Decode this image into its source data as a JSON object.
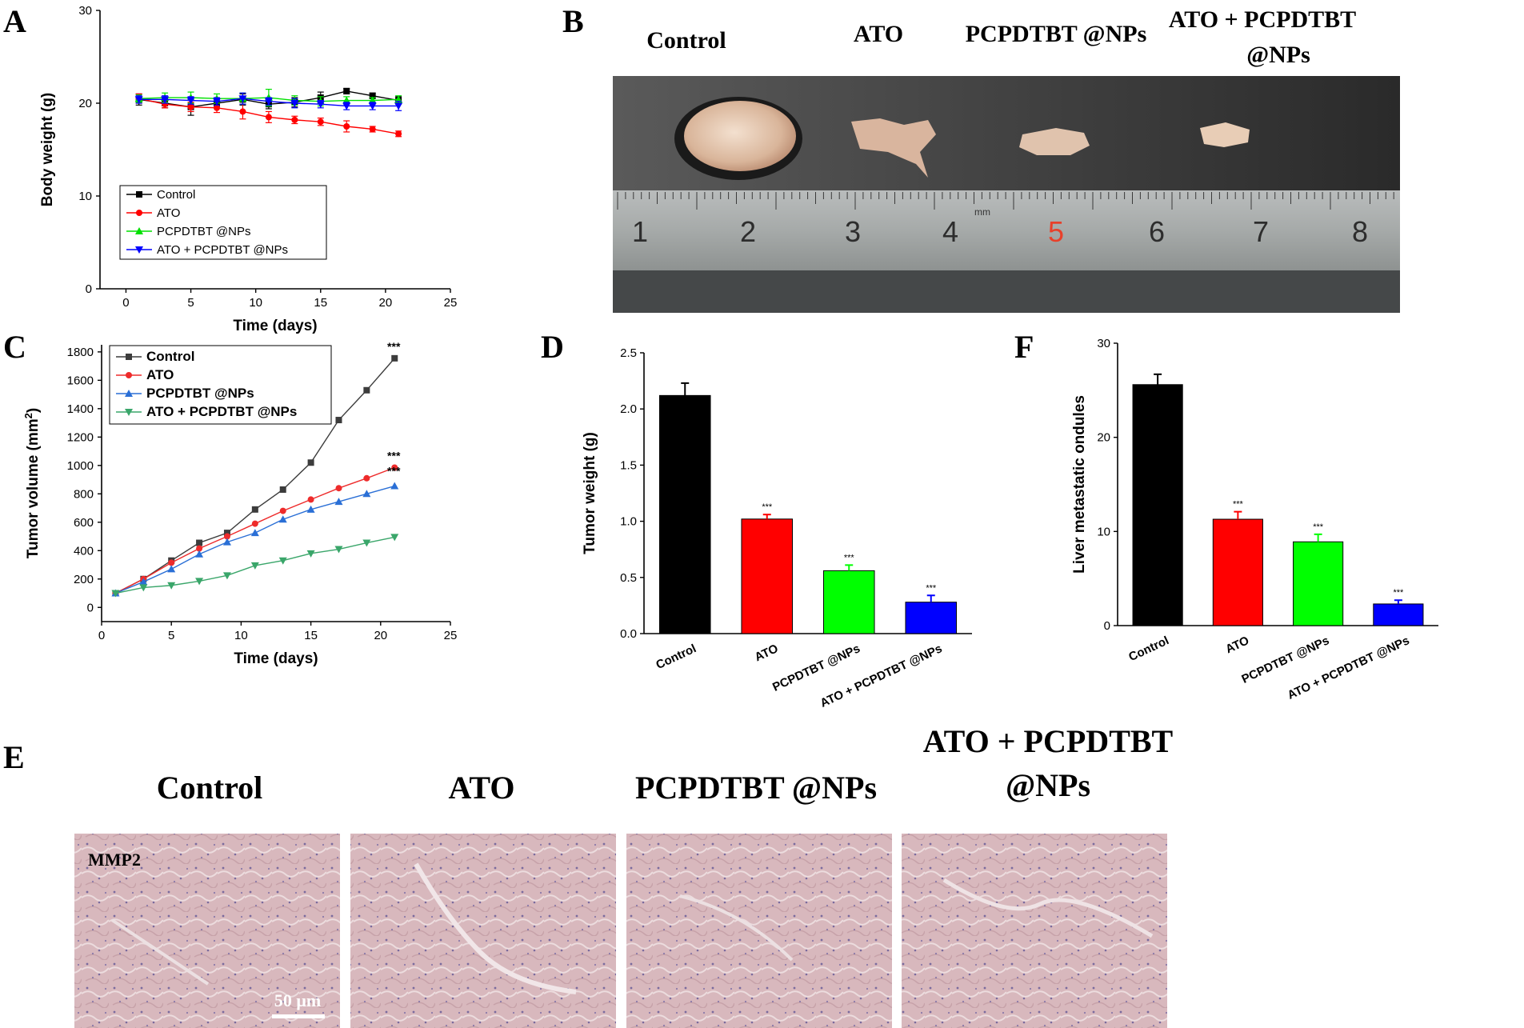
{
  "colors": {
    "black": "#000000",
    "red": "#ff0000",
    "green": "#00e000",
    "blue": "#0000ff",
    "c_control": "#3c3c3c",
    "c_ato": "#ee2b2b",
    "c_pcp": "#2a6fd6",
    "c_combo": "#3aa66a"
  },
  "panel_letters": {
    "a": "A",
    "b": "B",
    "c": "C",
    "d": "D",
    "e": "E",
    "f": "F"
  },
  "photo_b": {
    "titles": [
      "Control",
      "ATO",
      "PCPDTBT @NPs",
      "ATO + PCPDTBT",
      "@NPs"
    ],
    "ruler_numbers": [
      "1",
      "2",
      "3",
      "4",
      "5",
      "6",
      "7",
      "8"
    ],
    "ruler_unit": "mm"
  },
  "panel_e": {
    "titles": [
      "Control",
      "ATO",
      "PCPDTBT @NPs",
      "ATO + PCPDTBT",
      "@NPs"
    ],
    "stain_label": "MMP2",
    "scale_bar": "50 μm"
  },
  "chart_data": [
    {
      "id": "A",
      "type": "line",
      "xlabel": "Time (days)",
      "ylabel": "Body weight (g)",
      "xlim": [
        -2,
        25
      ],
      "ylim": [
        0,
        30
      ],
      "xticks": [
        0,
        5,
        10,
        15,
        20,
        25
      ],
      "yticks": [
        0,
        10,
        20,
        30
      ],
      "legend": "lower-left",
      "x": [
        1,
        3,
        5,
        7,
        9,
        11,
        13,
        15,
        17,
        19,
        21
      ],
      "series": [
        {
          "name": "Control",
          "color": "#000000",
          "marker": "square",
          "values": [
            20.4,
            20.0,
            19.6,
            20.0,
            20.4,
            19.9,
            20.1,
            20.6,
            21.3,
            20.8,
            20.3
          ],
          "err": [
            0.6,
            0.5,
            0.9,
            0.5,
            0.6,
            0.5,
            0.5,
            0.6,
            0.3,
            0.3,
            0.4
          ]
        },
        {
          "name": "ATO",
          "color": "#ff0000",
          "marker": "circle",
          "values": [
            20.5,
            19.9,
            19.6,
            19.5,
            19.1,
            18.5,
            18.2,
            18.0,
            17.5,
            17.2,
            16.7
          ],
          "err": [
            0.5,
            0.4,
            0.5,
            0.5,
            0.8,
            0.6,
            0.4,
            0.4,
            0.6,
            0.3,
            0.3
          ]
        },
        {
          "name": "PCPDTBT @NPs",
          "color": "#00e000",
          "marker": "triangle-up",
          "values": [
            20.5,
            20.6,
            20.6,
            20.5,
            20.5,
            20.6,
            20.3,
            20.2,
            20.3,
            20.3,
            20.4
          ],
          "err": [
            0.4,
            0.5,
            0.6,
            0.5,
            0.6,
            0.9,
            0.5,
            0.5,
            0.4,
            0.3,
            0.4
          ]
        },
        {
          "name": "ATO + PCPDTBT @NPs",
          "color": "#0000ff",
          "marker": "triangle-down",
          "values": [
            20.4,
            20.4,
            20.3,
            20.2,
            20.5,
            20.2,
            20.0,
            19.9,
            19.7,
            19.7,
            19.7
          ],
          "err": [
            0.4,
            0.4,
            0.4,
            0.4,
            0.6,
            0.4,
            0.5,
            0.4,
            0.4,
            0.4,
            0.5
          ]
        }
      ]
    },
    {
      "id": "C",
      "type": "line",
      "xlabel": "Time (days)",
      "ylabel": "Tumor volume (mm²)",
      "ylabel_main": "Tumor volume (mm",
      "ylabel_sup": "2",
      "ylabel_end": ")",
      "xlim": [
        0,
        25
      ],
      "ylim": [
        -100,
        1850
      ],
      "xticks": [
        0,
        5,
        10,
        15,
        20,
        25
      ],
      "yticks": [
        0,
        200,
        400,
        600,
        800,
        1000,
        1200,
        1400,
        1600,
        1800
      ],
      "legend": "top-left",
      "x": [
        1,
        3,
        5,
        7,
        9,
        11,
        13,
        15,
        17,
        19,
        21
      ],
      "series": [
        {
          "name": "Control",
          "color": "#3c3c3c",
          "marker": "square",
          "values": [
            100,
            200,
            330,
            455,
            525,
            690,
            830,
            1020,
            1320,
            1530,
            1755
          ]
        },
        {
          "name": "ATO",
          "color": "#ee2b2b",
          "marker": "circle",
          "values": [
            100,
            200,
            315,
            415,
            500,
            590,
            680,
            760,
            840,
            910,
            985
          ]
        },
        {
          "name": "PCPDTBT @NPs",
          "color": "#2a6fd6",
          "marker": "triangle-up",
          "values": [
            100,
            180,
            270,
            375,
            460,
            525,
            620,
            690,
            745,
            800,
            855
          ]
        },
        {
          "name": "ATO + PCPDTBT @NPs",
          "color": "#3aa66a",
          "marker": "triangle-down",
          "values": [
            100,
            140,
            155,
            185,
            225,
            295,
            330,
            380,
            410,
            455,
            495
          ]
        }
      ],
      "annotations": [
        {
          "text": "***",
          "x": 21,
          "y": 1755
        },
        {
          "text": "***",
          "x": 21,
          "y": 985
        },
        {
          "text": "***",
          "x": 21,
          "y": 855
        }
      ]
    },
    {
      "id": "D",
      "type": "bar",
      "ylabel": "Tumor weight (g)",
      "ylim": [
        0,
        2.5
      ],
      "yticks": [
        "0.0",
        "0.5",
        "1.0",
        "1.5",
        "2.0",
        "2.5"
      ],
      "categories": [
        "Control",
        "ATO",
        "PCPDTBT @NPs",
        "ATO + PCPDTBT @NPs"
      ],
      "values": [
        2.12,
        1.02,
        0.56,
        0.28
      ],
      "err": [
        0.11,
        0.04,
        0.05,
        0.06
      ],
      "colors": [
        "#000000",
        "#ff0000",
        "#00ff00",
        "#0000ff"
      ],
      "significance": [
        "",
        "***",
        "***",
        "***"
      ]
    },
    {
      "id": "F",
      "type": "bar",
      "ylabel": "Liver metastatic ondules",
      "ylim": [
        0,
        30
      ],
      "yticks": [
        "0",
        "10",
        "20",
        "30"
      ],
      "categories": [
        "Control",
        "ATO",
        "PCPDTBT @NPs",
        "ATO + PCPDTBT @NPs"
      ],
      "values": [
        25.6,
        11.3,
        8.9,
        2.3
      ],
      "err": [
        1.1,
        0.8,
        0.8,
        0.4
      ],
      "colors": [
        "#000000",
        "#ff0000",
        "#00ff00",
        "#0000ff"
      ],
      "significance": [
        "",
        "***",
        "***",
        "***"
      ]
    }
  ]
}
